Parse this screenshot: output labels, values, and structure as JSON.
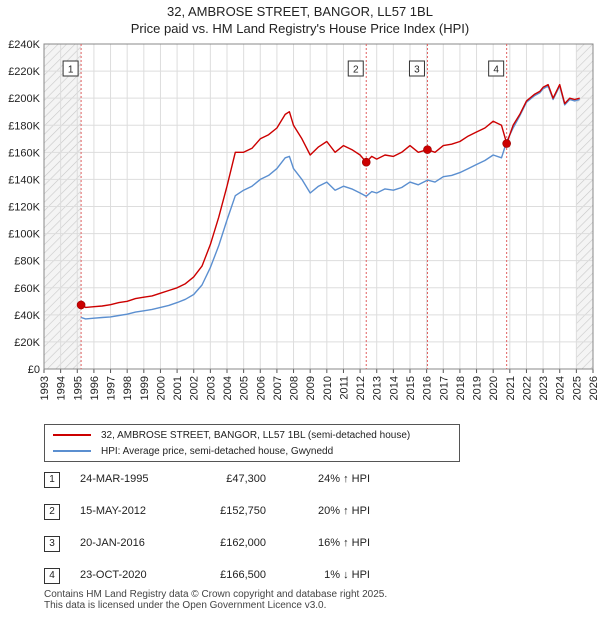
{
  "title": "32, AMBROSE STREET, BANGOR, LL57 1BL",
  "subtitle": "Price paid vs. HM Land Registry's House Price Index (HPI)",
  "colors": {
    "price_line": "#cc0000",
    "hpi_line": "#5b8fd0",
    "marker_fill": "#cc0000",
    "vline": "#e06060",
    "hatch": "#cccccc",
    "grid": "#dddddd"
  },
  "chart_data": {
    "type": "line",
    "title": "32, AMBROSE STREET, BANGOR, LL57 1BL",
    "subtitle": "Price paid vs. HM Land Registry's House Price Index (HPI)",
    "xlabel": "",
    "ylabel": "",
    "xlim": [
      1993,
      2026
    ],
    "ylim": [
      0,
      240000
    ],
    "y_ticks": [
      0,
      20000,
      40000,
      60000,
      80000,
      100000,
      120000,
      140000,
      160000,
      180000,
      200000,
      220000,
      240000
    ],
    "y_tick_labels": [
      "£0",
      "£20K",
      "£40K",
      "£60K",
      "£80K",
      "£100K",
      "£120K",
      "£140K",
      "£160K",
      "£180K",
      "£200K",
      "£220K",
      "£240K"
    ],
    "x_ticks": [
      1993,
      1994,
      1995,
      1996,
      1997,
      1998,
      1999,
      2000,
      2001,
      2002,
      2003,
      2004,
      2005,
      2006,
      2007,
      2008,
      2009,
      2010,
      2011,
      2012,
      2013,
      2014,
      2015,
      2016,
      2017,
      2018,
      2019,
      2020,
      2021,
      2022,
      2023,
      2024,
      2025,
      2026
    ],
    "x_tick_labels": [
      "1993",
      "1994",
      "1995",
      "1996",
      "1997",
      "1998",
      "1999",
      "2000",
      "2001",
      "2002",
      "2003",
      "2004",
      "2005",
      "2006",
      "2007",
      "2008",
      "2009",
      "2010",
      "2011",
      "2012",
      "2013",
      "2014",
      "2015",
      "2016",
      "2017",
      "2018",
      "2019",
      "2020",
      "2021",
      "2022",
      "2023",
      "2024",
      "2025",
      "2026"
    ],
    "grid": true,
    "hatched_ranges": [
      [
        1993,
        1995.23
      ],
      [
        2025.0,
        2026
      ]
    ],
    "series": [
      {
        "name": "32, AMBROSE STREET, BANGOR, LL57 1BL (semi-detached house)",
        "color": "#cc0000",
        "x": [
          1995.23,
          1995.5,
          1996.0,
          1996.5,
          1997.0,
          1997.5,
          1998.0,
          1998.5,
          1999.0,
          1999.5,
          2000.0,
          2000.5,
          2001.0,
          2001.5,
          2002.0,
          2002.5,
          2003.0,
          2003.5,
          2004.0,
          2004.5,
          2005.0,
          2005.5,
          2006.0,
          2006.5,
          2007.0,
          2007.5,
          2007.75,
          2008.0,
          2008.5,
          2009.0,
          2009.5,
          2010.0,
          2010.5,
          2011.0,
          2011.5,
          2012.0,
          2012.37,
          2012.7,
          2013.0,
          2013.5,
          2014.0,
          2014.5,
          2015.0,
          2015.5,
          2016.05,
          2016.5,
          2017.0,
          2017.5,
          2018.0,
          2018.5,
          2019.0,
          2019.5,
          2020.0,
          2020.5,
          2020.81,
          2021.2,
          2021.6,
          2022.0,
          2022.5,
          2022.8,
          2023.0,
          2023.3,
          2023.6,
          2024.0,
          2024.3,
          2024.6,
          2024.9,
          2025.2
        ],
        "values": [
          47300,
          45500,
          46000,
          46500,
          47500,
          49000,
          50000,
          52000,
          53000,
          54000,
          56000,
          58000,
          60000,
          63000,
          68000,
          76000,
          92000,
          112000,
          135000,
          160000,
          160000,
          163000,
          170000,
          173000,
          178000,
          188000,
          190000,
          180000,
          170000,
          158000,
          164000,
          168000,
          160000,
          165000,
          162000,
          158000,
          152750,
          157000,
          155000,
          158000,
          157000,
          160000,
          165000,
          160000,
          162000,
          160000,
          165000,
          166000,
          168000,
          172000,
          175000,
          178000,
          183000,
          180000,
          166500,
          180000,
          188000,
          198000,
          203000,
          205000,
          208000,
          210000,
          200000,
          210000,
          196000,
          200000,
          199000,
          200000
        ]
      },
      {
        "name": "HPI: Average price, semi-detached house, Gwynedd",
        "color": "#5b8fd0",
        "x": [
          1995.23,
          1995.5,
          1996.0,
          1996.5,
          1997.0,
          1997.5,
          1998.0,
          1998.5,
          1999.0,
          1999.5,
          2000.0,
          2000.5,
          2001.0,
          2001.5,
          2002.0,
          2002.5,
          2003.0,
          2003.5,
          2004.0,
          2004.5,
          2005.0,
          2005.5,
          2006.0,
          2006.5,
          2007.0,
          2007.5,
          2007.75,
          2008.0,
          2008.5,
          2009.0,
          2009.5,
          2010.0,
          2010.5,
          2011.0,
          2011.5,
          2012.0,
          2012.37,
          2012.7,
          2013.0,
          2013.5,
          2014.0,
          2014.5,
          2015.0,
          2015.5,
          2016.05,
          2016.5,
          2017.0,
          2017.5,
          2018.0,
          2018.5,
          2019.0,
          2019.5,
          2020.0,
          2020.5,
          2020.81,
          2021.2,
          2021.6,
          2022.0,
          2022.5,
          2022.8,
          2023.0,
          2023.3,
          2023.6,
          2024.0,
          2024.3,
          2024.6,
          2024.9,
          2025.2
        ],
        "values": [
          38000,
          37000,
          37500,
          38000,
          38500,
          39500,
          40500,
          42000,
          43000,
          44000,
          45500,
          47000,
          49000,
          51500,
          55000,
          62000,
          75000,
          91000,
          110000,
          128000,
          132000,
          135000,
          140000,
          143000,
          148000,
          156000,
          157000,
          148000,
          140000,
          130000,
          135000,
          138000,
          132000,
          135000,
          133000,
          130000,
          127500,
          131000,
          130000,
          133000,
          132000,
          134000,
          138000,
          136000,
          139500,
          138000,
          142000,
          143000,
          145000,
          148000,
          151000,
          154000,
          158000,
          156000,
          168000,
          178000,
          187000,
          197000,
          202000,
          204000,
          207000,
          209000,
          199000,
          209000,
          195000,
          199000,
          198000,
          199000
        ]
      }
    ],
    "sales": [
      {
        "label": "1",
        "x": 1995.23,
        "value": 47300
      },
      {
        "label": "2",
        "x": 2012.37,
        "value": 152750
      },
      {
        "label": "3",
        "x": 2016.05,
        "value": 162000
      },
      {
        "label": "4",
        "x": 2020.81,
        "value": 166500
      }
    ]
  },
  "legend": {
    "price_label": "32, AMBROSE STREET, BANGOR, LL57 1BL (semi-detached house)",
    "hpi_label": "HPI: Average price, semi-detached house, Gwynedd"
  },
  "sales_table": [
    {
      "num": "1",
      "date": "24-MAR-1995",
      "price": "£47,300",
      "hpi": "24% ↑ HPI"
    },
    {
      "num": "2",
      "date": "15-MAY-2012",
      "price": "£152,750",
      "hpi": "20% ↑ HPI"
    },
    {
      "num": "3",
      "date": "20-JAN-2016",
      "price": "£162,000",
      "hpi": "16% ↑ HPI"
    },
    {
      "num": "4",
      "date": "23-OCT-2020",
      "price": "£166,500",
      "hpi": "1% ↓ HPI"
    }
  ],
  "footer": {
    "line1": "Contains HM Land Registry data © Crown copyright and database right 2025.",
    "line2": "This data is licensed under the Open Government Licence v3.0."
  }
}
